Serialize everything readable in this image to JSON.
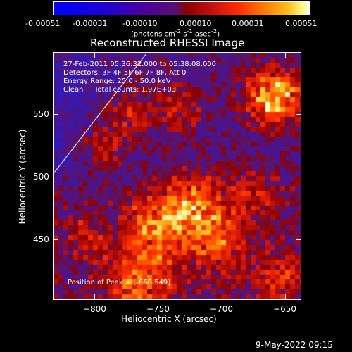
{
  "colorbar": {
    "tick_labels": [
      "-0.00051",
      "-0.00031",
      "-0.00010",
      "0.00010",
      "0.00031",
      "0.00051"
    ],
    "unit_html": "(photons cm<sup>-2</sup> s<sup>-1</sup> asec<sup>-2</sup>)"
  },
  "title": "Reconstructed RHESSI Image",
  "annotations": {
    "time_range": "27-Feb-2011 05:36:32.000 to 05:38:08.000",
    "detectors": "Detectors: 3F 4F 5F 6F 7F 8F, Att 0",
    "energy_range": "Energy Range: 25.0 - 50.0 keV",
    "clean_label": "Clean",
    "total_counts": "Total counts: 1.97E+03",
    "peak_position": "Position of Peak = [-660,549]"
  },
  "timestamp": "9-May-2022 09:15",
  "chart_data": {
    "type": "heatmap",
    "title": "Reconstructed RHESSI Image",
    "xlabel": "Heliocentric X (arcsec)",
    "ylabel": "Heliocentric Y (arcsec)",
    "xlim": [
      -833,
      -637
    ],
    "ylim": [
      402,
      599
    ],
    "x_ticks": [
      -800,
      -750,
      -700,
      -650
    ],
    "x_tick_labels": [
      "−800",
      "−750",
      "−700",
      "−650"
    ],
    "y_ticks": [
      450,
      500,
      550
    ],
    "y_tick_labels": [
      "450",
      "500",
      "550"
    ],
    "colorbar_range": [
      -0.00051,
      0.00051
    ],
    "colormap": [
      "#0000ff",
      "#4a00a0",
      "#8a0000",
      "#ff2a00",
      "#ff7800",
      "#ffc020",
      "#ffffff"
    ],
    "limb_line": [
      [
        -833,
        503
      ],
      [
        -760,
        598
      ]
    ],
    "peak_position": [
      -660,
      549
    ]
  }
}
